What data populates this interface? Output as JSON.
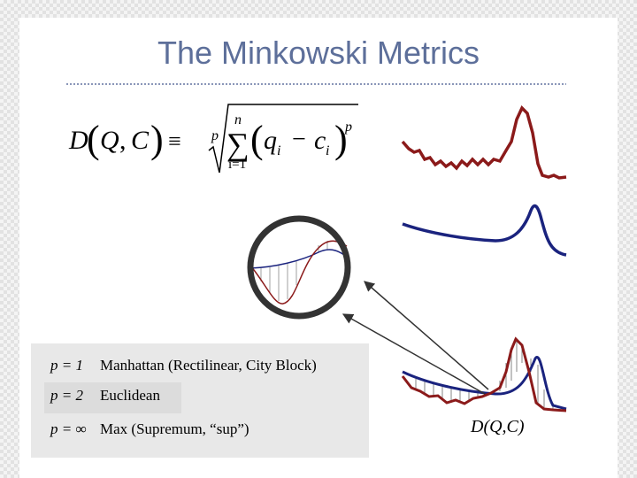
{
  "title": "The Minkowski Metrics",
  "formula": {
    "lhs_function": "D",
    "lhs_arg1": "Q",
    "lhs_arg2": "C",
    "equiv": "≡",
    "root_index": "p",
    "sum_upper": "n",
    "sum_symbol": "∑",
    "sum_lower": "i=1",
    "term_q": "q",
    "subscript_1": "i",
    "minus": "−",
    "term_c": "c",
    "subscript_2": "i",
    "exponent": "p"
  },
  "metrics": [
    {
      "symbol": "p = 1",
      "label": "Manhattan (Rectilinear, City Block)"
    },
    {
      "symbol": "p = 2",
      "label": "Euclidean"
    },
    {
      "symbol": "p = ∞",
      "label": "Max (Supremum, “sup”)"
    }
  ],
  "distance_label": "D(Q,C)"
}
